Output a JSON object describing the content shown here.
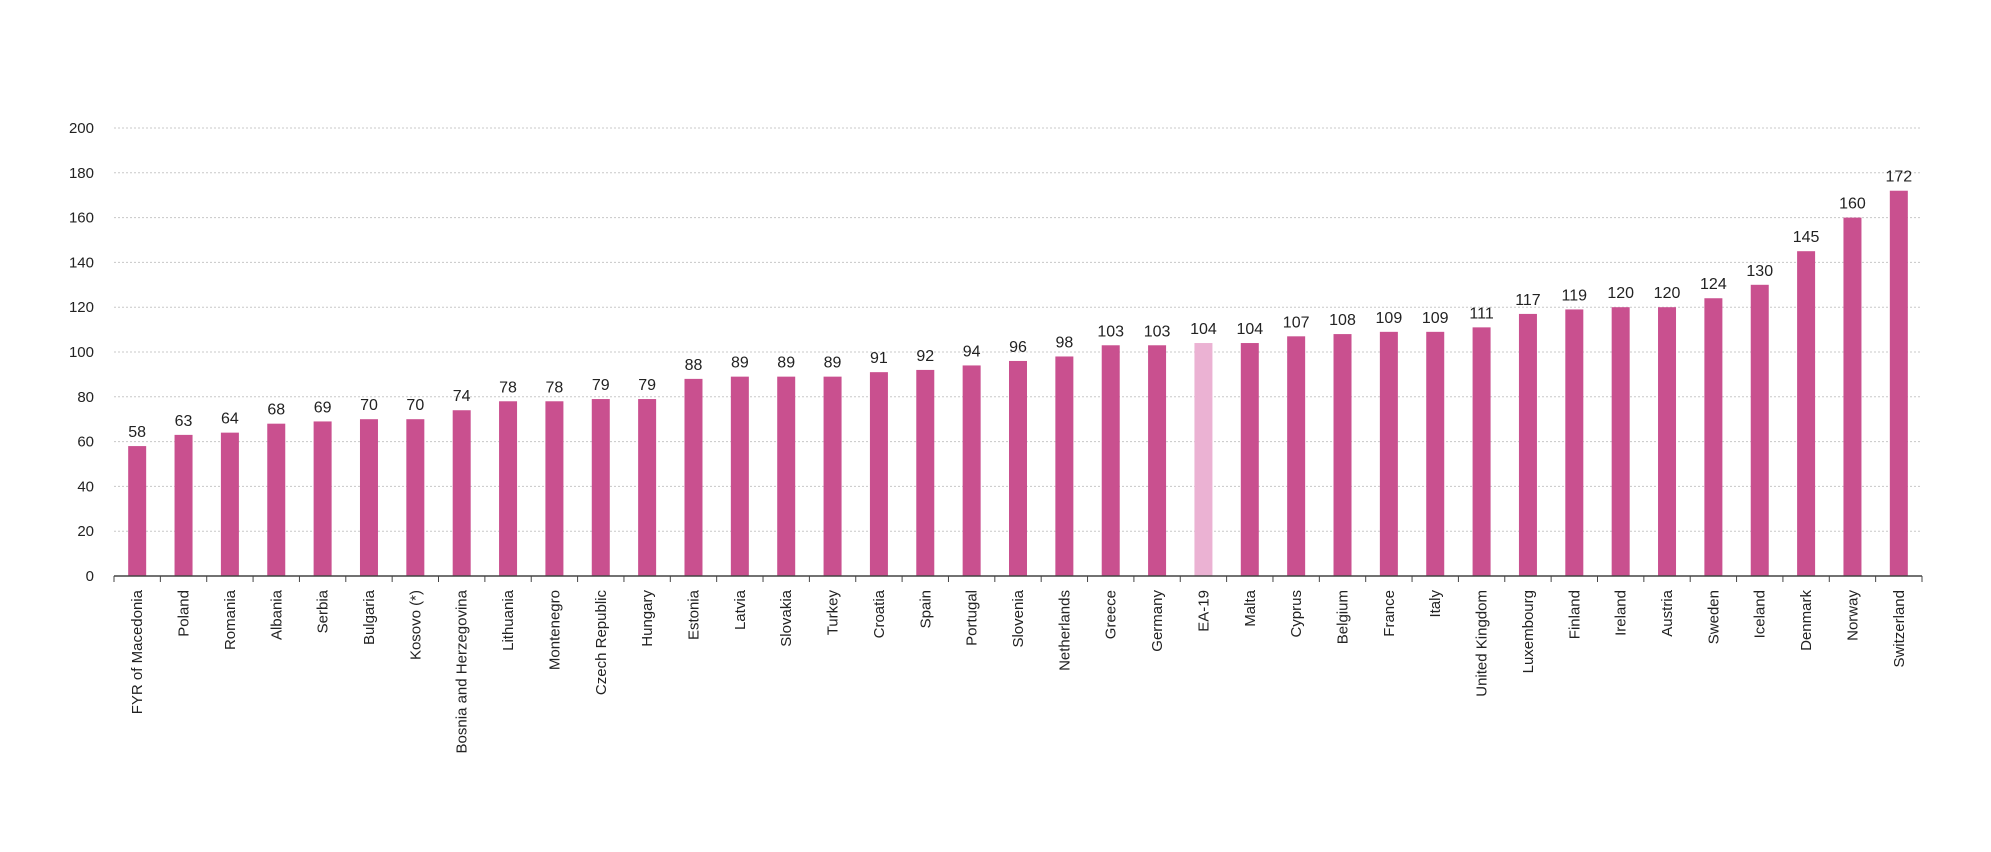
{
  "chart_data": {
    "type": "bar",
    "title": "",
    "xlabel": "",
    "ylabel": "",
    "ylim": [
      0,
      200
    ],
    "yticks": [
      0,
      20,
      40,
      60,
      80,
      100,
      120,
      140,
      160,
      180,
      200
    ],
    "grid": true,
    "categories": [
      "FYR of Macedonia",
      "Poland",
      "Romania",
      "Albania",
      "Serbia",
      "Bulgaria",
      "Kosovo (*)",
      "Bosnia and Herzegovina",
      "Lithuania",
      "Montenegro",
      "Czech Republic",
      "Hungary",
      "Estonia",
      "Latvia",
      "Slovakia",
      "Turkey",
      "Croatia",
      "Spain",
      "Portugal",
      "Slovenia",
      "Netherlands",
      "Greece",
      "Germany",
      "EA-19",
      "Malta",
      "Cyprus",
      "Belgium",
      "France",
      "Italy",
      "United Kingdom",
      "Luxembourg",
      "Finland",
      "Ireland",
      "Austria",
      "Sweden",
      "Iceland",
      "Denmark",
      "Norway",
      "Switzerland"
    ],
    "values": [
      58,
      63,
      64,
      68,
      69,
      70,
      70,
      74,
      78,
      78,
      79,
      79,
      88,
      89,
      89,
      89,
      91,
      92,
      94,
      96,
      98,
      103,
      103,
      104,
      104,
      107,
      108,
      109,
      109,
      111,
      117,
      119,
      120,
      120,
      124,
      130,
      145,
      160,
      172
    ],
    "colors": {
      "default": "#c9508f",
      "highlight": "#ebb2d3",
      "grid": "#c8c8c8",
      "axis": "#444444"
    },
    "highlight_category": "EA-19"
  }
}
